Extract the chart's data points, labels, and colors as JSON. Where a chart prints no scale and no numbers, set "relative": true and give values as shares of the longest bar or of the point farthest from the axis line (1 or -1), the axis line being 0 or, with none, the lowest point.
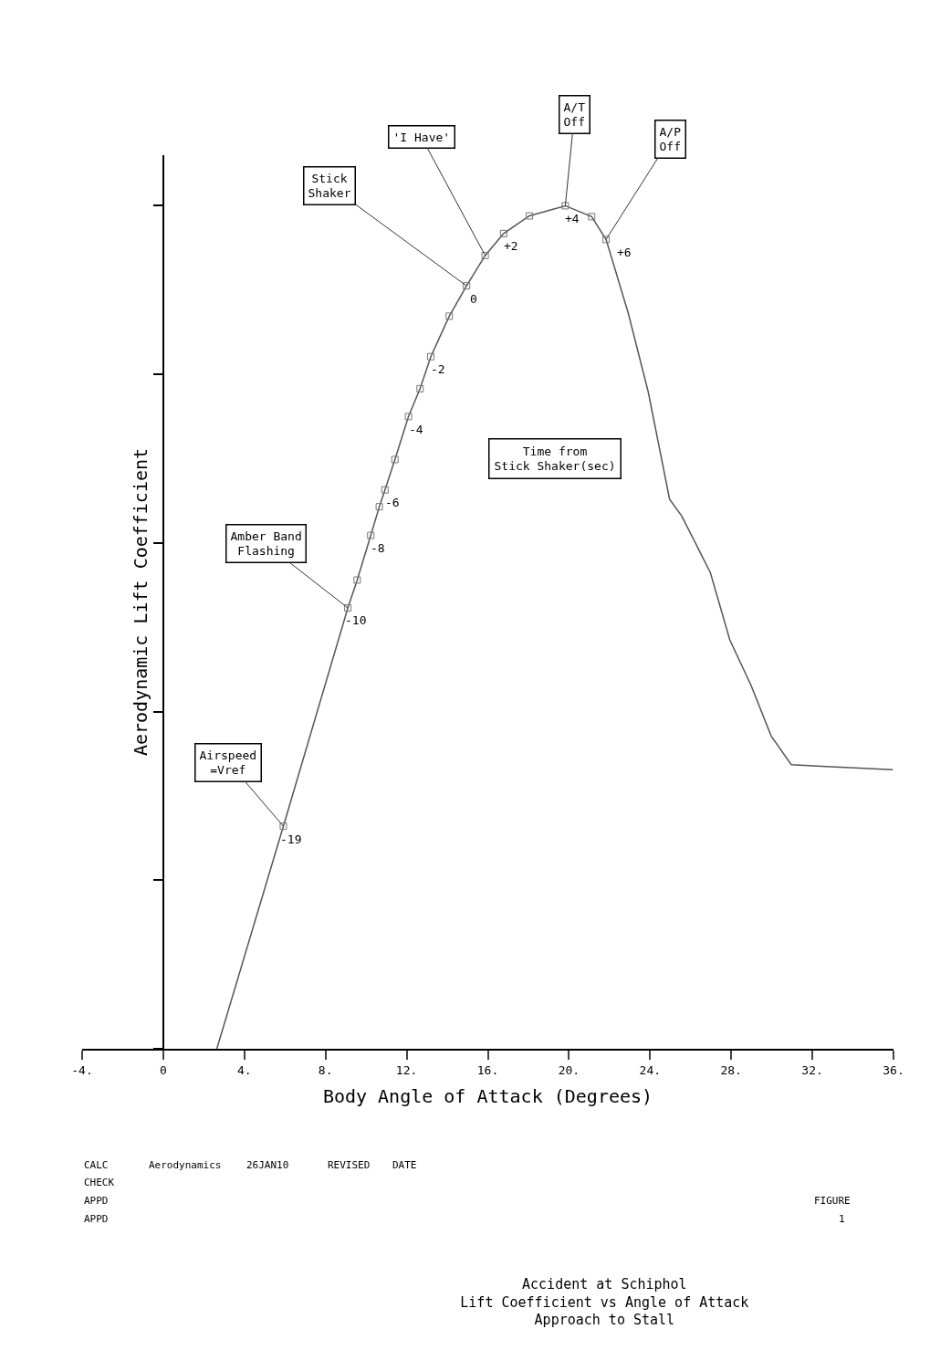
{
  "chart_data": {
    "type": "line",
    "title": "Accident at Schiphol",
    "subtitle": "Lift Coefficient vs Angle of Attack\nApproach to Stall",
    "xlabel": "Body Angle of Attack (Degrees)",
    "ylabel": "Aerodynamic Lift Coefficient",
    "relative": true,
    "xlim": [
      -4,
      36
    ],
    "xticks": [
      {
        "value": -4,
        "label": "-4."
      },
      0,
      {
        "value": 4,
        "label": "4."
      },
      {
        "value": 8,
        "label": "8."
      },
      {
        "value": 12,
        "label": "12."
      },
      {
        "value": 16,
        "label": "16."
      },
      {
        "value": 20,
        "label": "20."
      },
      {
        "value": 24,
        "label": "24."
      },
      {
        "value": 28,
        "label": "28."
      },
      {
        "value": 32,
        "label": "32."
      },
      {
        "value": 36,
        "label": "36."
      }
    ],
    "series": [
      {
        "color": "#555555",
        "line_style": "solid",
        "marker": "none",
        "x": [
          2.64,
          5.92,
          9.1,
          9.56,
          10.23,
          10.65,
          10.93,
          11.42,
          12.09,
          12.66,
          13.19,
          14.1,
          14.95,
          15.87,
          16.78,
          18.05,
          19.82,
          21.12,
          21.83,
          22.92,
          23.91,
          24.96,
          25.56,
          26.97,
          27.93,
          28.98,
          29.97,
          30.96,
          32.44,
          35.97
        ],
        "values": [
          0,
          0.264,
          0.523,
          0.556,
          0.609,
          0.643,
          0.663,
          0.699,
          0.75,
          0.783,
          0.821,
          0.869,
          0.905,
          0.941,
          0.967,
          0.988,
          1,
          0.987,
          0.96,
          0.873,
          0.779,
          0.652,
          0.632,
          0.565,
          0.485,
          0.431,
          0.371,
          0.337,
          0.335,
          0.331
        ]
      },
      {
        "type": "scatter",
        "color": "#777777",
        "marker": "square",
        "x": [
          5.92,
          9.1,
          9.56,
          10.23,
          10.65,
          10.93,
          11.42,
          12.09,
          12.66,
          13.19,
          14.1,
          14.95,
          15.87,
          16.78,
          18.05,
          19.82,
          21.12,
          21.83
        ],
        "values": [
          0.264,
          0.523,
          0.556,
          0.609,
          0.643,
          0.663,
          0.699,
          0.75,
          0.783,
          0.821,
          0.869,
          0.905,
          0.941,
          0.967,
          0.988,
          1,
          0.987,
          0.96
        ]
      }
    ],
    "annotations": [
      {
        "text": "-19",
        "x": 5.92,
        "y": 0.264
      },
      {
        "text": "-10",
        "x": 9.1,
        "y": 0.523
      },
      {
        "text": "-8",
        "x": 10.23,
        "y": 0.609
      },
      {
        "text": "-6",
        "x": 10.93,
        "y": 0.663
      },
      {
        "text": "-4",
        "x": 12.09,
        "y": 0.75
      },
      {
        "text": "-2",
        "x": 13.19,
        "y": 0.821
      },
      {
        "text": "0",
        "x": 14.95,
        "y": 0.905
      },
      {
        "text": "+2",
        "x": 16.78,
        "y": 0.967
      },
      {
        "text": "+4",
        "x": 19.82,
        "y": 1
      },
      {
        "text": "+6",
        "x": 21.83,
        "y": 0.96
      },
      {
        "text": "Airspeed\n=Vref",
        "x": 5.92,
        "y": 0.264
      },
      {
        "text": "Amber Band\nFlashing",
        "x": 9.1,
        "y": 0.523
      },
      {
        "text": "Stick\nShaker",
        "x": 14.95,
        "y": 0.905
      },
      {
        "text": "'I Have'",
        "x": 15.87,
        "y": 0.941
      },
      {
        "text": "A/T\nOff",
        "x": 19.82,
        "y": 1
      },
      {
        "text": "A/P\nOff",
        "x": 21.83,
        "y": 0.96
      },
      "Time from\nStick Shaker(sec)",
      "CALC",
      "Aerodynamics",
      "26JAN10",
      "REVISED",
      "DATE",
      "CHECK",
      "APPD",
      "APPD",
      "FIGURE",
      "1"
    ]
  }
}
